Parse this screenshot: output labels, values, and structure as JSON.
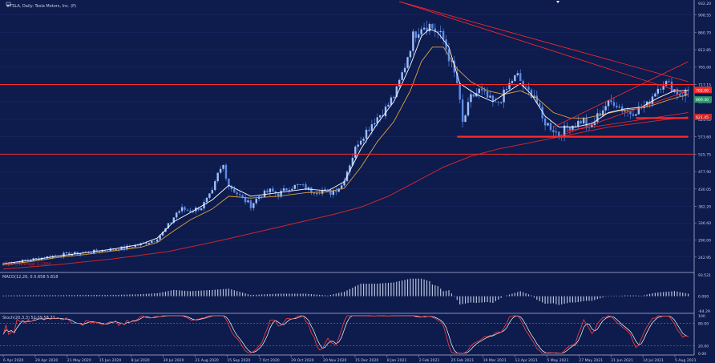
{
  "header": {
    "title": "#TSLA, Daily:  Tesla Motors, Inc.  (P)"
  },
  "indicators": {
    "ma_label": "Moving Average   1.1304",
    "macd_label": "MACD(12,26, 0.5.658 5.818",
    "stoch_label": "Stoch(20,3,3) 52.39 53.73"
  },
  "colors": {
    "background": "#0d1b4d",
    "candle": "#5a8be6",
    "ma_fast": "#ffffff",
    "ma_mid": "#e0a040",
    "ma_slow": "#c8282d",
    "lines": "#ff2a2a",
    "stoch_main": "#ff4040",
    "stoch_signal": "#ffffff",
    "macd_hist": "#b8c4dc",
    "price_tag": "#ff2a2a"
  },
  "chart_data": [
    {
      "type": "candlestick",
      "ylim": [
        205,
        945
      ],
      "y_ticks": [
        242.95,
        290.0,
        336.6,
        382.2,
        430.05,
        477.9,
        525.75,
        573.6,
        621.45,
        669.3,
        717.15,
        765.0,
        812.85,
        860.7,
        908.55
      ],
      "y_top_label": "932.20",
      "price_tags": [
        "702.00",
        "669.30",
        "621.45"
      ],
      "x_ticks": [
        "6 Apr 2020",
        "29 Apr 2020",
        "21 May 2020",
        "15 Jun 2020",
        "8 Jul 2020",
        "30 Jul 2020",
        "21 Aug 2020",
        "15 Sep 2020",
        "7 Oct 2020",
        "29 Oct 2020",
        "20 Nov 2020",
        "15 Dec 2020",
        "8 Jan 2021",
        "2 Feb 2021",
        "25 Feb 2021",
        "19 Mar 2021",
        "13 Apr 2021",
        "5 May 2021",
        "27 May 2021",
        "21 Jun 2021",
        "14 Jul 2021",
        "5 Aug 2021"
      ],
      "close_path": [
        [
          0,
          225
        ],
        [
          8,
          233
        ],
        [
          15,
          242
        ],
        [
          22,
          250
        ],
        [
          30,
          255
        ],
        [
          37,
          262
        ],
        [
          44,
          268
        ],
        [
          50,
          278
        ],
        [
          55,
          290
        ],
        [
          58,
          310
        ],
        [
          61,
          340
        ],
        [
          63,
          365
        ],
        [
          65,
          375
        ],
        [
          68,
          370
        ],
        [
          72,
          380
        ],
        [
          76,
          420
        ],
        [
          78,
          470
        ],
        [
          80,
          495
        ],
        [
          82,
          440
        ],
        [
          86,
          410
        ],
        [
          90,
          385
        ],
        [
          93,
          410
        ],
        [
          97,
          425
        ],
        [
          100,
          415
        ],
        [
          104,
          435
        ],
        [
          108,
          440
        ],
        [
          112,
          425
        ],
        [
          116,
          425
        ],
        [
          119,
          420
        ],
        [
          123,
          440
        ],
        [
          126,
          500
        ],
        [
          129,
          560
        ],
        [
          132,
          590
        ],
        [
          135,
          620
        ],
        [
          139,
          650
        ],
        [
          143,
          700
        ],
        [
          146,
          770
        ],
        [
          149,
          850
        ],
        [
          152,
          880
        ],
        [
          155,
          880
        ],
        [
          158,
          860
        ],
        [
          160,
          840
        ],
        [
          163,
          770
        ],
        [
          165,
          720
        ],
        [
          167,
          610
        ],
        [
          170,
          680
        ],
        [
          173,
          700
        ],
        [
          176,
          680
        ],
        [
          179,
          660
        ],
        [
          182,
          690
        ],
        [
          185,
          730
        ],
        [
          187,
          740
        ],
        [
          190,
          700
        ],
        [
          193,
          690
        ],
        [
          196,
          620
        ],
        [
          199,
          600
        ],
        [
          202,
          580
        ],
        [
          205,
          600
        ],
        [
          208,
          610
        ],
        [
          211,
          620
        ],
        [
          213,
          590
        ],
        [
          216,
          630
        ],
        [
          219,
          660
        ],
        [
          222,
          670
        ],
        [
          225,
          650
        ],
        [
          228,
          640
        ],
        [
          231,
          650
        ],
        [
          234,
          660
        ],
        [
          237,
          700
        ],
        [
          240,
          725
        ],
        [
          243,
          710
        ],
        [
          246,
          690
        ],
        [
          249,
          700
        ]
      ],
      "ma_fast": [
        [
          0,
          225
        ],
        [
          10,
          234
        ],
        [
          20,
          246
        ],
        [
          30,
          255
        ],
        [
          40,
          265
        ],
        [
          50,
          278
        ],
        [
          56,
          295
        ],
        [
          62,
          340
        ],
        [
          68,
          365
        ],
        [
          76,
          400
        ],
        [
          82,
          440
        ],
        [
          90,
          410
        ],
        [
          100,
          420
        ],
        [
          110,
          430
        ],
        [
          118,
          425
        ],
        [
          124,
          450
        ],
        [
          130,
          540
        ],
        [
          136,
          610
        ],
        [
          142,
          670
        ],
        [
          148,
          770
        ],
        [
          152,
          850
        ],
        [
          155,
          870
        ],
        [
          158,
          860
        ],
        [
          162,
          820
        ],
        [
          166,
          720
        ],
        [
          172,
          690
        ],
        [
          178,
          670
        ],
        [
          184,
          700
        ],
        [
          188,
          720
        ],
        [
          192,
          690
        ],
        [
          197,
          630
        ],
        [
          202,
          600
        ],
        [
          208,
          600
        ],
        [
          214,
          610
        ],
        [
          220,
          640
        ],
        [
          226,
          650
        ],
        [
          232,
          655
        ],
        [
          238,
          680
        ],
        [
          244,
          700
        ],
        [
          249,
          700
        ]
      ],
      "ma_mid": [
        [
          0,
          222
        ],
        [
          10,
          230
        ],
        [
          20,
          242
        ],
        [
          30,
          250
        ],
        [
          40,
          260
        ],
        [
          50,
          270
        ],
        [
          56,
          283
        ],
        [
          62,
          315
        ],
        [
          68,
          345
        ],
        [
          76,
          375
        ],
        [
          82,
          410
        ],
        [
          90,
          405
        ],
        [
          100,
          410
        ],
        [
          110,
          420
        ],
        [
          118,
          422
        ],
        [
          124,
          432
        ],
        [
          130,
          490
        ],
        [
          136,
          560
        ],
        [
          142,
          615
        ],
        [
          148,
          700
        ],
        [
          152,
          780
        ],
        [
          156,
          820
        ],
        [
          160,
          820
        ],
        [
          165,
          760
        ],
        [
          170,
          725
        ],
        [
          176,
          700
        ],
        [
          182,
          690
        ],
        [
          188,
          700
        ],
        [
          194,
          680
        ],
        [
          200,
          640
        ],
        [
          206,
          625
        ],
        [
          212,
          625
        ],
        [
          218,
          635
        ],
        [
          224,
          645
        ],
        [
          230,
          650
        ],
        [
          236,
          660
        ],
        [
          242,
          675
        ],
        [
          249,
          690
        ]
      ],
      "ma_slow": [
        [
          0,
          210
        ],
        [
          20,
          222
        ],
        [
          40,
          238
        ],
        [
          60,
          258
        ],
        [
          80,
          290
        ],
        [
          100,
          325
        ],
        [
          120,
          360
        ],
        [
          130,
          380
        ],
        [
          140,
          410
        ],
        [
          150,
          450
        ],
        [
          160,
          490
        ],
        [
          170,
          520
        ],
        [
          180,
          540
        ],
        [
          190,
          555
        ],
        [
          200,
          570
        ],
        [
          210,
          585
        ],
        [
          220,
          600
        ],
        [
          230,
          610
        ],
        [
          240,
          620
        ],
        [
          249,
          628
        ]
      ],
      "h_lines": [
        717,
        525.75
      ],
      "h_segments": [
        {
          "x": [
            165,
            249
          ],
          "y": 573.6
        },
        {
          "x": [
            230,
            249
          ],
          "y": 625
        }
      ],
      "trend_lines": [
        {
          "points": [
            [
              144,
              945
            ],
            [
              249,
              725
            ]
          ]
        },
        {
          "points": [
            [
              144,
              945
            ],
            [
              249,
              690
            ]
          ]
        },
        {
          "points": [
            [
              200,
              600
            ],
            [
              249,
              780
            ]
          ]
        },
        {
          "points": [
            [
              200,
              570
            ],
            [
              249,
              700
            ]
          ]
        },
        {
          "points": [
            [
              205,
              590
            ],
            [
              249,
              640
            ]
          ]
        }
      ]
    },
    {
      "type": "histogram",
      "title": "MACD",
      "ylim": [
        -64.29,
        93.521
      ],
      "y_ticks": [
        "93.521",
        "0.000",
        "-64.29"
      ]
    },
    {
      "type": "line",
      "title": "Stoch",
      "ylim": [
        0,
        100
      ],
      "y_ticks": [
        "100",
        "80.00",
        "20.00",
        "0.00"
      ]
    }
  ]
}
